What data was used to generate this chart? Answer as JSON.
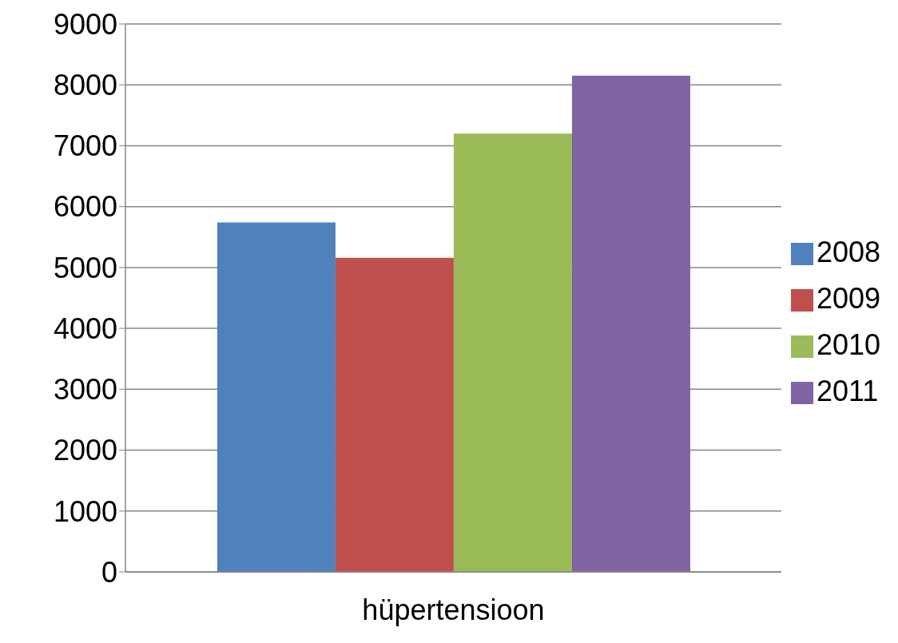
{
  "chart_data": {
    "type": "bar",
    "categories": [
      "hüpertensioon"
    ],
    "series": [
      {
        "name": "2008",
        "color": "#4f81bd",
        "values": [
          5740
        ]
      },
      {
        "name": "2009",
        "color": "#c0504d",
        "values": [
          5160
        ]
      },
      {
        "name": "2010",
        "color": "#9bbb59",
        "values": [
          7200
        ]
      },
      {
        "name": "2011",
        "color": "#8064a2",
        "values": [
          8150
        ]
      }
    ],
    "ylim": [
      0,
      9000
    ],
    "yticks": [
      0,
      1000,
      2000,
      3000,
      4000,
      5000,
      6000,
      7000,
      8000,
      9000
    ],
    "grid": "y",
    "legend": "right"
  }
}
